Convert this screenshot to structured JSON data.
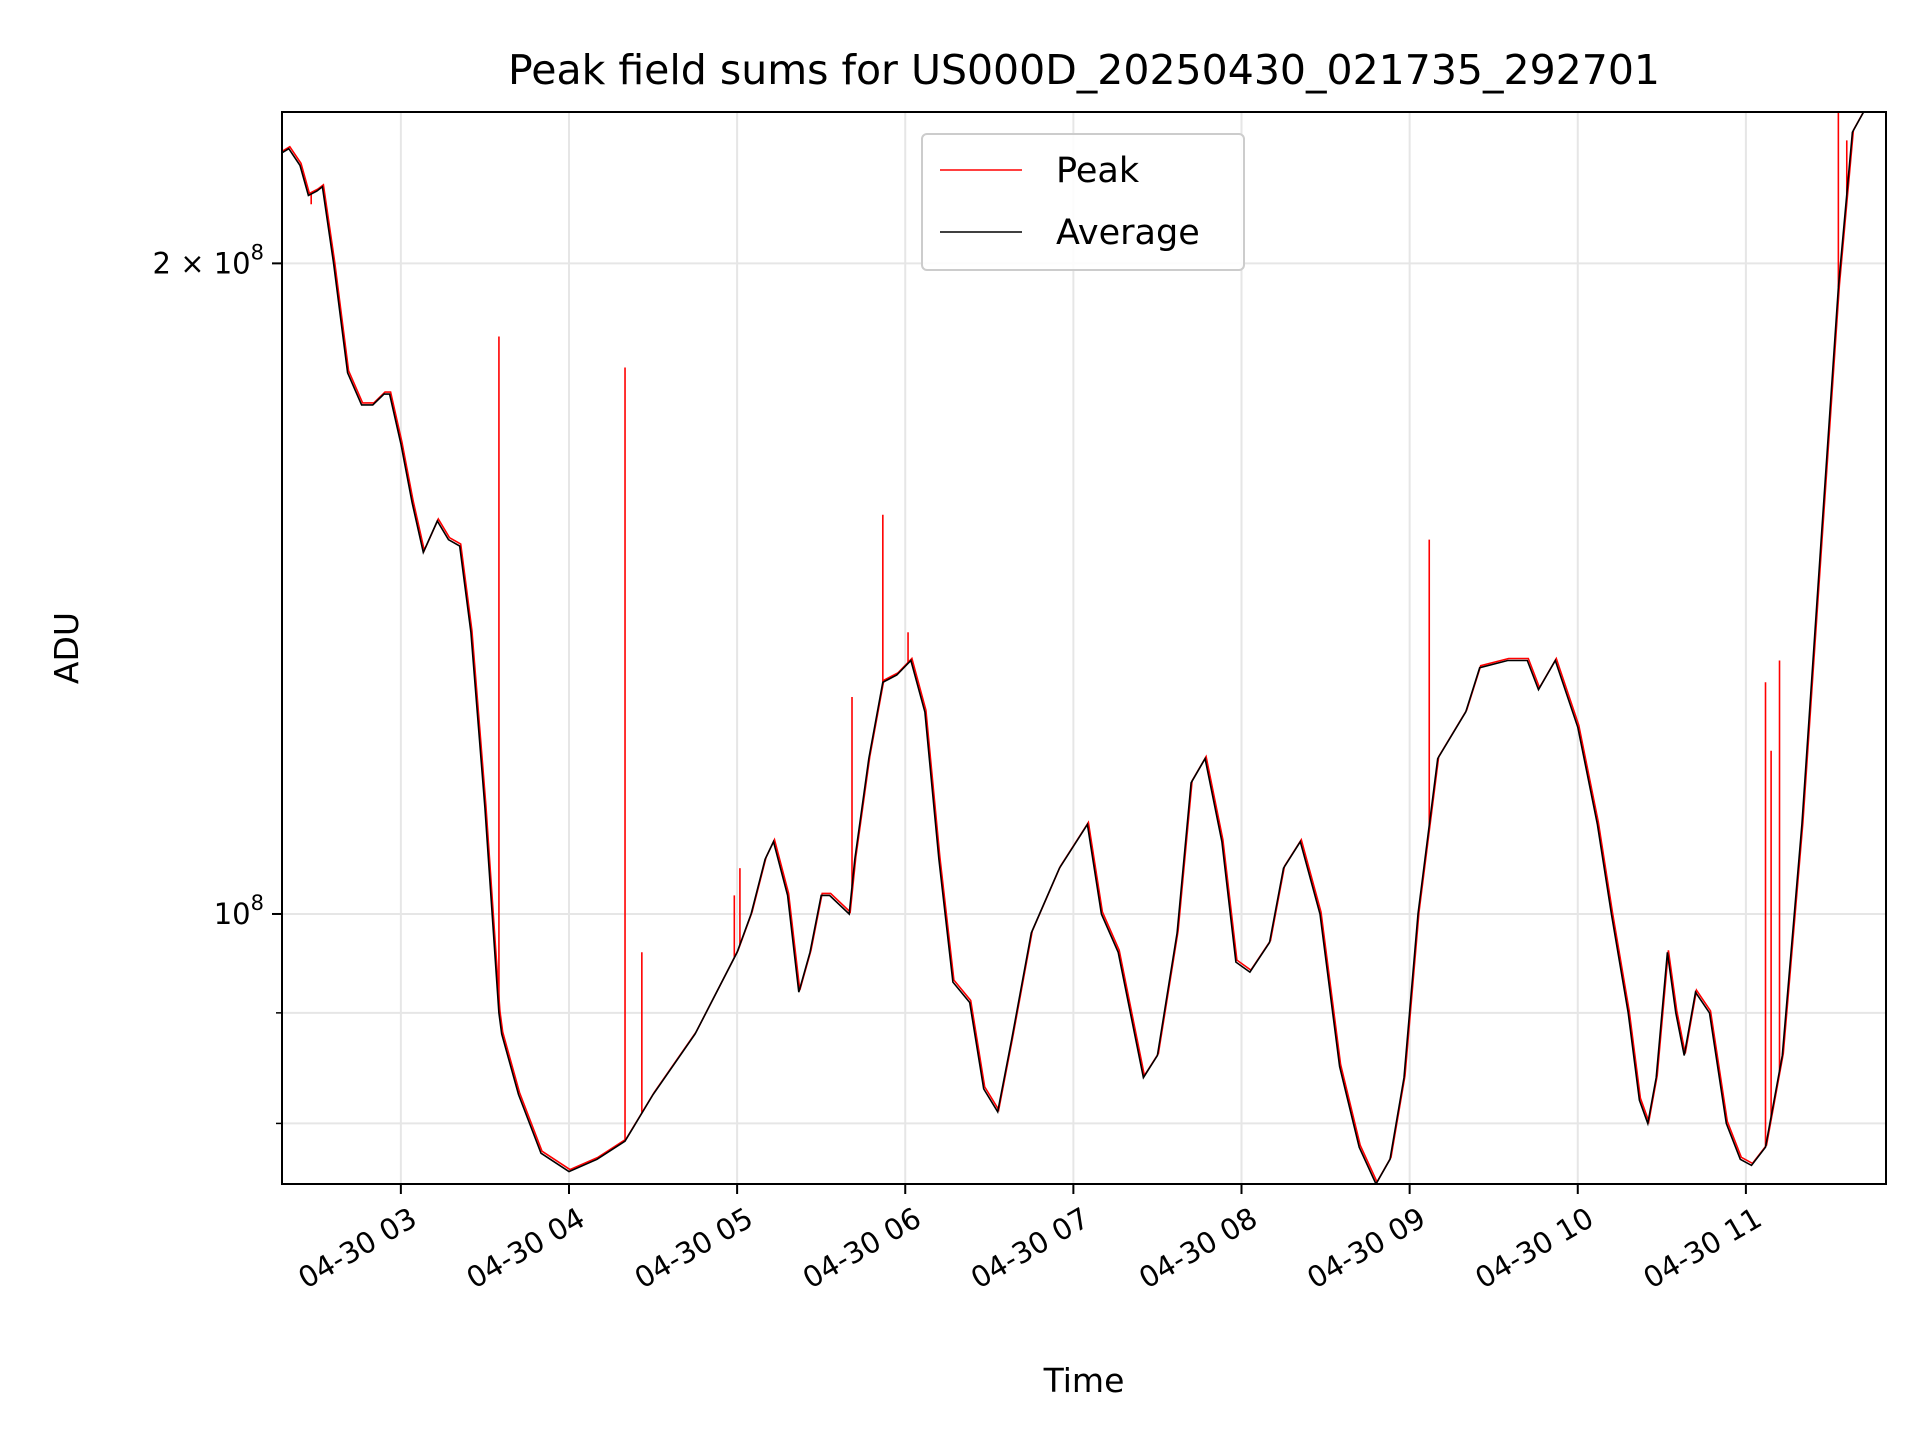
{
  "chart_data": {
    "type": "line",
    "title": "Peak field sums for US000D_20250430_021735_292701",
    "xlabel": "Time",
    "ylabel": "ADU",
    "yscale": "log",
    "xlim": [
      "2025-04-30 02:17:35",
      "2025-04-30 11:50:00"
    ],
    "ylim": [
      75000000.0,
      235000000.0
    ],
    "grid": true,
    "legend_position": "top-center",
    "x_ticks": [
      "2025-04-30 03:00",
      "2025-04-30 04:00",
      "2025-04-30 05:00",
      "2025-04-30 06:00",
      "2025-04-30 07:00",
      "2025-04-30 08:00",
      "2025-04-30 09:00",
      "2025-04-30 10:00",
      "2025-04-30 11:00"
    ],
    "x_tick_labels": [
      "04-30 03",
      "04-30 04",
      "04-30 05",
      "04-30 06",
      "04-30 07",
      "04-30 08",
      "04-30 09",
      "04-30 10",
      "04-30 11"
    ],
    "y_major_ticks": [
      100000000,
      200000000
    ],
    "y_major_tick_labels": [
      {
        "base": "10",
        "exp": "8"
      },
      {
        "mant": "2",
        "base": "10",
        "exp": "8"
      }
    ],
    "y_minor_ticks": [
      80000000,
      90000000
    ],
    "series": [
      {
        "name": "Peak",
        "color": "#ff0000",
        "points": [
          [
            "2025-04-30 02:28:00",
            213000000.0
          ],
          [
            "2025-04-30 03:35:00",
            185000000.0
          ],
          [
            "2025-04-30 04:20:00",
            179000000.0
          ],
          [
            "2025-04-30 04:26:00",
            96000000.0
          ],
          [
            "2025-04-30 04:59:00",
            102000000.0
          ],
          [
            "2025-04-30 05:01:00",
            105000000.0
          ],
          [
            "2025-04-30 05:41:00",
            126000000.0
          ],
          [
            "2025-04-30 05:52:00",
            153000000.0
          ],
          [
            "2025-04-30 06:01:00",
            135000000.0
          ],
          [
            "2025-04-30 09:07:00",
            149000000.0
          ],
          [
            "2025-04-30 11:07:00",
            128000000.0
          ],
          [
            "2025-04-30 11:09:00",
            119000000.0
          ],
          [
            "2025-04-30 11:12:00",
            131000000.0
          ],
          [
            "2025-04-30 11:33:00",
            243000000.0
          ],
          [
            "2025-04-30 11:36:00",
            228000000.0
          ]
        ]
      },
      {
        "name": "Average",
        "color": "#000000",
        "points": [
          [
            "2025-04-30 02:17:35",
            225000000.0
          ],
          [
            "2025-04-30 02:20:00",
            226000000.0
          ],
          [
            "2025-04-30 02:24:00",
            222000000.0
          ],
          [
            "2025-04-30 02:27:00",
            215000000.0
          ],
          [
            "2025-04-30 02:30:00",
            216000000.0
          ],
          [
            "2025-04-30 02:32:00",
            217000000.0
          ],
          [
            "2025-04-30 02:36:00",
            200000000.0
          ],
          [
            "2025-04-30 02:41:00",
            178000000.0
          ],
          [
            "2025-04-30 02:46:00",
            172000000.0
          ],
          [
            "2025-04-30 02:50:00",
            172000000.0
          ],
          [
            "2025-04-30 02:54:00",
            174000000.0
          ],
          [
            "2025-04-30 02:56:00",
            174000000.0
          ],
          [
            "2025-04-30 03:00:00",
            165000000.0
          ],
          [
            "2025-04-30 03:04:00",
            155000000.0
          ],
          [
            "2025-04-30 03:08:00",
            147000000.0
          ],
          [
            "2025-04-30 03:13:00",
            152000000.0
          ],
          [
            "2025-04-30 03:17:00",
            149000000.0
          ],
          [
            "2025-04-30 03:21:00",
            148000000.0
          ],
          [
            "2025-04-30 03:25:00",
            135000000.0
          ],
          [
            "2025-04-30 03:30:00",
            112000000.0
          ],
          [
            "2025-04-30 03:35:00",
            90000000.0
          ],
          [
            "2025-04-30 03:36:00",
            88000000.0
          ],
          [
            "2025-04-30 03:42:00",
            82500000.0
          ],
          [
            "2025-04-30 03:50:00",
            77500000.0
          ],
          [
            "2025-04-30 04:00:00",
            76000000.0
          ],
          [
            "2025-04-30 04:10:00",
            77000000.0
          ],
          [
            "2025-04-30 04:20:00",
            78500000.0
          ],
          [
            "2025-04-30 04:30:00",
            82500000.0
          ],
          [
            "2025-04-30 04:45:00",
            88000000.0
          ],
          [
            "2025-04-30 05:00:00",
            96000000.0
          ],
          [
            "2025-04-30 05:05:00",
            100000000.0
          ],
          [
            "2025-04-30 05:10:00",
            106000000.0
          ],
          [
            "2025-04-30 05:13:00",
            108000000.0
          ],
          [
            "2025-04-30 05:18:00",
            102000000.0
          ],
          [
            "2025-04-30 05:22:00",
            92000000.0
          ],
          [
            "2025-04-30 05:26:00",
            96000000.0
          ],
          [
            "2025-04-30 05:30:00",
            102000000.0
          ],
          [
            "2025-04-30 05:33:00",
            102000000.0
          ],
          [
            "2025-04-30 05:40:00",
            100000000.0
          ],
          [
            "2025-04-30 05:42:00",
            106000000.0
          ],
          [
            "2025-04-30 05:47:00",
            118000000.0
          ],
          [
            "2025-04-30 05:52:00",
            128000000.0
          ],
          [
            "2025-04-30 05:57:00",
            129000000.0
          ],
          [
            "2025-04-30 06:02:00",
            131000000.0
          ],
          [
            "2025-04-30 06:07:00",
            124000000.0
          ],
          [
            "2025-04-30 06:12:00",
            106000000.0
          ],
          [
            "2025-04-30 06:17:00",
            93000000.0
          ],
          [
            "2025-04-30 06:23:00",
            91000000.0
          ],
          [
            "2025-04-30 06:28:00",
            83000000.0
          ],
          [
            "2025-04-30 06:33:00",
            81000000.0
          ],
          [
            "2025-04-30 06:38:00",
            87500000.0
          ],
          [
            "2025-04-30 06:45:00",
            98000000.0
          ],
          [
            "2025-04-30 06:55:00",
            105000000.0
          ],
          [
            "2025-04-30 07:05:00",
            110000000.0
          ],
          [
            "2025-04-30 07:10:00",
            100000000.0
          ],
          [
            "2025-04-30 07:16:00",
            96000000.0
          ],
          [
            "2025-04-30 07:25:00",
            84000000.0
          ],
          [
            "2025-04-30 07:30:00",
            86000000.0
          ],
          [
            "2025-04-30 07:37:00",
            98000000.0
          ],
          [
            "2025-04-30 07:42:00",
            115000000.0
          ],
          [
            "2025-04-30 07:47:00",
            118000000.0
          ],
          [
            "2025-04-30 07:53:00",
            108000000.0
          ],
          [
            "2025-04-30 07:58:00",
            95000000.0
          ],
          [
            "2025-04-30 08:03:00",
            94000000.0
          ],
          [
            "2025-04-30 08:10:00",
            97000000.0
          ],
          [
            "2025-04-30 08:15:00",
            105000000.0
          ],
          [
            "2025-04-30 08:21:00",
            108000000.0
          ],
          [
            "2025-04-30 08:28:00",
            100000000.0
          ],
          [
            "2025-04-30 08:35:00",
            85000000.0
          ],
          [
            "2025-04-30 08:42:00",
            78000000.0
          ],
          [
            "2025-04-30 08:48:00",
            75000000.0
          ],
          [
            "2025-04-30 08:53:00",
            77000000.0
          ],
          [
            "2025-04-30 08:58:00",
            84000000.0
          ],
          [
            "2025-04-30 09:03:00",
            100000000.0
          ],
          [
            "2025-04-30 09:10:00",
            118000000.0
          ],
          [
            "2025-04-30 09:20:00",
            124000000.0
          ],
          [
            "2025-04-30 09:25:00",
            130000000.0
          ],
          [
            "2025-04-30 09:35:00",
            131000000.0
          ],
          [
            "2025-04-30 09:42:00",
            131000000.0
          ],
          [
            "2025-04-30 09:46:00",
            127000000.0
          ],
          [
            "2025-04-30 09:52:00",
            131000000.0
          ],
          [
            "2025-04-30 10:00:00",
            122000000.0
          ],
          [
            "2025-04-30 10:07:00",
            110000000.0
          ],
          [
            "2025-04-30 10:12:00",
            100000000.0
          ],
          [
            "2025-04-30 10:18:00",
            90000000.0
          ],
          [
            "2025-04-30 10:22:00",
            82000000.0
          ],
          [
            "2025-04-30 10:25:00",
            80000000.0
          ],
          [
            "2025-04-30 10:28:00",
            84000000.0
          ],
          [
            "2025-04-30 10:32:00",
            96000000.0
          ],
          [
            "2025-04-30 10:35:00",
            90000000.0
          ],
          [
            "2025-04-30 10:38:00",
            86000000.0
          ],
          [
            "2025-04-30 10:42:00",
            92000000.0
          ],
          [
            "2025-04-30 10:47:00",
            90000000.0
          ],
          [
            "2025-04-30 10:53:00",
            80000000.0
          ],
          [
            "2025-04-30 10:58:00",
            77000000.0
          ],
          [
            "2025-04-30 11:02:00",
            76500000.0
          ],
          [
            "2025-04-30 11:07:00",
            78000000.0
          ],
          [
            "2025-04-30 11:13:00",
            86000000.0
          ],
          [
            "2025-04-30 11:20:00",
            110000000.0
          ],
          [
            "2025-04-30 11:27:00",
            150000000.0
          ],
          [
            "2025-04-30 11:33:00",
            195000000.0
          ],
          [
            "2025-04-30 11:38:00",
            230000000.0
          ],
          [
            "2025-04-30 11:42:00",
            235000000.0
          ],
          [
            "2025-04-30 11:50:00",
            235000000.0
          ]
        ]
      }
    ]
  }
}
